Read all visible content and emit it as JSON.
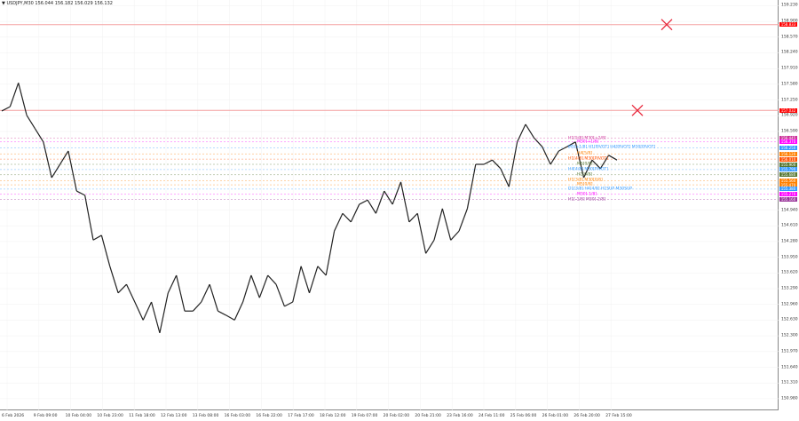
{
  "header": {
    "symbol": "USDJPY,M30",
    "open": "156.044",
    "high": "156.182",
    "low": "156.029",
    "close": "156.132"
  },
  "price_axis": [
    "159.230",
    "158.900",
    "158.570",
    "158.240",
    "157.910",
    "157.580",
    "157.250",
    "156.920",
    "156.590",
    "154.940",
    "154.610",
    "154.280",
    "153.950",
    "153.620",
    "153.290",
    "152.960",
    "152.630",
    "152.300",
    "151.970",
    "151.640",
    "151.310",
    "150.980"
  ],
  "time_axis": [
    "6 Feb 2026",
    "9 Feb 09:00",
    "10 Feb 04:00",
    "10 Feb 23:00",
    "11 Feb 18:00",
    "12 Feb 13:00",
    "13 Feb 08:00",
    "16 Feb 03:00",
    "16 Feb 22:00",
    "17 Feb 17:00",
    "18 Feb 12:00",
    "19 Feb 07:00",
    "20 Feb 02:00",
    "20 Feb 21:00",
    "23 Feb 16:00",
    "24 Feb 11:00",
    "25 Feb 06:00",
    "26 Feb 01:00",
    "26 Feb 20:00",
    "27 Feb 15:00"
  ],
  "stop_levels": [
    {
      "price": "158.833",
      "color": "#ff0000"
    },
    {
      "price": "157.032",
      "color": "#ff0000"
    }
  ],
  "levels": [
    {
      "price": "156.445",
      "color": "#cc3399",
      "label": "H1[5/8] M30[+2/8]"
    },
    {
      "price": "156.370",
      "color": "#ff00ff",
      "label": "M30[+1/8]"
    },
    {
      "price": "156.250",
      "color": "#3399ff",
      "label": "M5[+1/8] H1[PIVOT] H4[PIVOT] M30[PIVOT]"
    },
    {
      "price": "156.120",
      "color": "#ff8000",
      "label": "H4[5/8]"
    },
    {
      "price": "156.010",
      "color": "#ff5000",
      "label": "H1[4/8] M30[PIVOT]"
    },
    {
      "price": "155.900",
      "color": "#557733",
      "label": "M5[0/8]"
    },
    {
      "price": "155.790",
      "color": "#3399ff",
      "label": "H4[4/8] M30[PIVOT]"
    },
    {
      "price": "155.680",
      "color": "#557733",
      "label": "H1[0/8]"
    },
    {
      "price": "155.560",
      "color": "#ff8000",
      "label": "H1[3/8] M30[0/8]"
    },
    {
      "price": "155.470",
      "color": "#ff8000",
      "label": "M5[0/8]"
    },
    {
      "price": "155.380",
      "color": "#3399ff",
      "label": "D1[3/8] H4[4/8] H1SUP M30SUP"
    },
    {
      "price": "155.270",
      "color": "#ff00ff",
      "label": "M30[-1/8]"
    },
    {
      "price": "155.160",
      "color": "#993399",
      "label": "H1[-1/8] M30[-2/8]"
    }
  ],
  "chart_data": {
    "type": "line",
    "title": "",
    "ylim": [
      150.9,
      159.3
    ],
    "grid": true,
    "values": [
      157.02,
      157.11,
      157.61,
      156.93,
      156.65,
      156.37,
      155.62,
      155.9,
      156.18,
      155.34,
      155.25,
      154.31,
      154.41,
      153.76,
      153.2,
      153.38,
      153.01,
      152.63,
      153.01,
      152.36,
      153.2,
      153.57,
      152.82,
      152.82,
      153.01,
      153.38,
      152.82,
      152.73,
      152.63,
      153.01,
      153.57,
      153.1,
      153.57,
      153.38,
      152.92,
      153.01,
      153.76,
      153.2,
      153.76,
      153.57,
      154.5,
      154.87,
      154.69,
      155.06,
      155.15,
      154.87,
      155.34,
      155.06,
      155.53,
      154.69,
      154.87,
      154.03,
      154.31,
      154.97,
      154.31,
      154.5,
      154.97,
      155.9,
      155.9,
      155.99,
      155.81,
      155.43,
      156.37,
      156.74,
      156.46,
      156.27,
      155.9,
      156.18,
      156.27,
      156.37,
      155.62,
      155.99,
      155.81,
      156.09,
      155.99
    ]
  }
}
